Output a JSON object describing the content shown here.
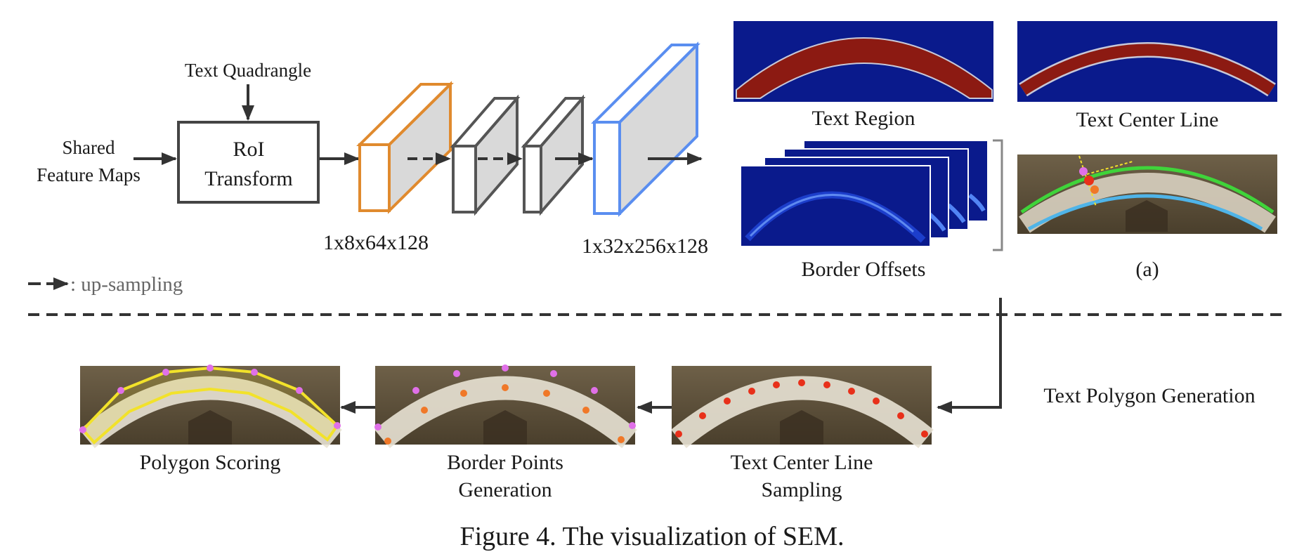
{
  "caption": "Figure 4. The visualization of SEM.",
  "pipeline": {
    "input_label_line1": "Shared",
    "input_label_line2": "Feature Maps",
    "quad_label": "Text Quadrangle",
    "roi_line1": "RoI",
    "roi_line2": "Transform",
    "dim_first": "1x8x64x128",
    "dim_last": "1x32x256x128"
  },
  "legend": {
    "upsampling": ": up-sampling"
  },
  "outputs": {
    "text_region": "Text Region",
    "text_center_line": "Text Center Line",
    "border_offsets": "Border Offsets",
    "panel_a": "(a)"
  },
  "generation": {
    "title": "Text Polygon Generation",
    "step1_line1": "Text Center Line",
    "step1_line2": "Sampling",
    "step2_line1": "Border Points",
    "step2_line2": "Generation",
    "step3": "Polygon Scoring"
  },
  "colors": {
    "map_bg": "#0a1a8c",
    "region_fill": "#8c1a12",
    "orange_block": "#e08a2e",
    "blue_block": "#5a8ef0",
    "green_border": "#3fd43a",
    "cyan_border": "#4fb4e8",
    "yellow_polygon": "#f2e22a",
    "sample_point": "#e8301a",
    "border_point_magenta": "#e070e8",
    "border_point_orange": "#f07828"
  }
}
